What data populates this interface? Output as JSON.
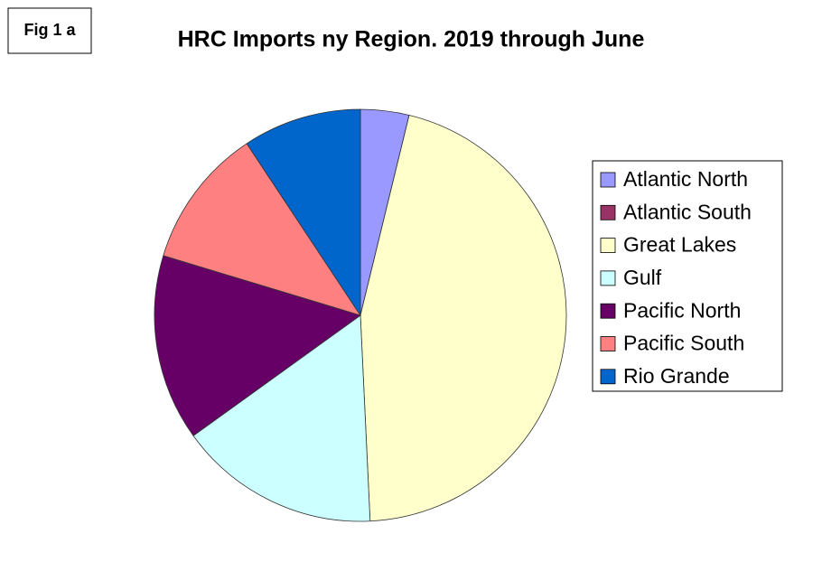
{
  "fig_label": "Fig 1 a",
  "chart_data": {
    "type": "pie",
    "title": "HRC Imports ny Region. 2019 through June",
    "categories": [
      "Atlantic North",
      "Atlantic South",
      "Great Lakes",
      "Gulf",
      "Pacific North",
      "Pacific South",
      "Rio Grande"
    ],
    "values": [
      3.8,
      0,
      45.4,
      15.8,
      14.6,
      11.0,
      9.3
    ],
    "colors": [
      "#9999ff",
      "#993366",
      "#ffffcc",
      "#ccffff",
      "#660066",
      "#ff8080",
      "#0066cc"
    ],
    "legend": "right"
  }
}
